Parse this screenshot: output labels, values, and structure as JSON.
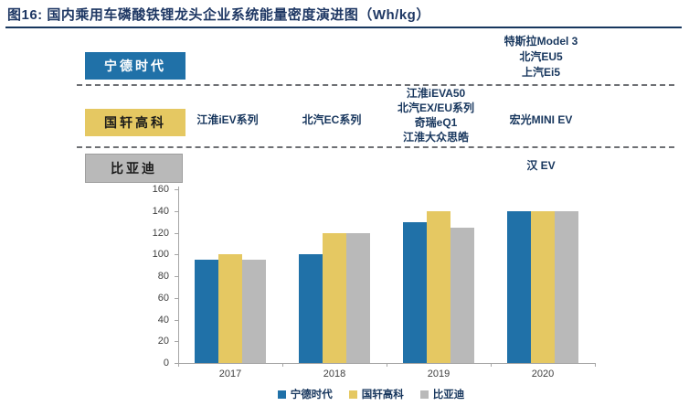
{
  "title": "图16:  国内乘用车磷酸铁锂龙头企业系统能量密度演进图（Wh/kg）",
  "companies": [
    {
      "label": "宁德时代",
      "color": "#2071A8",
      "text_color": "#FFFFFF"
    },
    {
      "label": "国轩高科",
      "color": "#E5C862",
      "text_color": "#1A1A1A"
    },
    {
      "label": "比亚迪",
      "color": "#B9B9B9",
      "text_color": "#1A1A1A"
    }
  ],
  "annotations": {
    "catl_2020": [
      "特斯拉Model 3",
      "北汽EU5",
      "上汽Ei5"
    ],
    "gotion_2017": "江淮iEV系列",
    "gotion_2018": "北汽EC系列",
    "gotion_2019": [
      "江淮iEVA50",
      "北汽EX/EU系列",
      "奇瑞eQ1",
      "江淮大众思皓"
    ],
    "gotion_2020": "宏光MINI EV",
    "byd_2020": "汉 EV"
  },
  "chart_data": {
    "type": "bar",
    "categories": [
      "2017",
      "2018",
      "2019",
      "2020"
    ],
    "series": [
      {
        "name": "宁德时代",
        "color": "#2071A8",
        "values": [
          95,
          100,
          130,
          140
        ]
      },
      {
        "name": "国轩高科",
        "color": "#E5C862",
        "values": [
          100,
          120,
          140,
          140
        ]
      },
      {
        "name": "比亚迪",
        "color": "#B9B9B9",
        "values": [
          95,
          120,
          125,
          140
        ]
      }
    ],
    "title": "国内乘用车磷酸铁锂龙头企业系统能量密度演进图（Wh/kg）",
    "xlabel": "",
    "ylabel": "",
    "ylim": [
      0,
      160
    ],
    "ytick_step": 20,
    "grid": false,
    "legend_position": "bottom"
  }
}
